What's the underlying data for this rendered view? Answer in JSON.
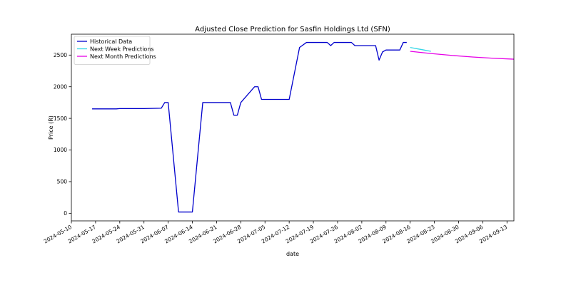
{
  "chart_data": {
    "type": "line",
    "title": "Adjusted Close Prediction for Sasfin Holdings Ltd (SFN)",
    "xlabel": "date",
    "ylabel": "Price (R)",
    "xlim": [
      "2024-05-10",
      "2024-09-15"
    ],
    "ylim": [
      -120,
      2830
    ],
    "x_ticks": [
      "2024-05-10",
      "2024-05-17",
      "2024-05-24",
      "2024-05-31",
      "2024-06-07",
      "2024-06-14",
      "2024-06-21",
      "2024-06-28",
      "2024-07-05",
      "2024-07-12",
      "2024-07-19",
      "2024-07-26",
      "2024-08-02",
      "2024-08-09",
      "2024-08-16",
      "2024-08-23",
      "2024-08-30",
      "2024-09-06",
      "2024-09-13"
    ],
    "y_ticks": [
      0,
      500,
      1000,
      1500,
      2000,
      2500
    ],
    "legend_position": "top-left",
    "grid": false,
    "series": [
      {
        "name": "Historical Data",
        "color": "#0000cc",
        "x": [
          "2024-05-16",
          "2024-05-23",
          "2024-05-24",
          "2024-05-31",
          "2024-06-05",
          "2024-06-06",
          "2024-06-07",
          "2024-06-10",
          "2024-06-13",
          "2024-06-14",
          "2024-06-17",
          "2024-06-25",
          "2024-06-26",
          "2024-06-27",
          "2024-06-28",
          "2024-07-02",
          "2024-07-03",
          "2024-07-04",
          "2024-07-10",
          "2024-07-12",
          "2024-07-15",
          "2024-07-17",
          "2024-07-23",
          "2024-07-24",
          "2024-07-25",
          "2024-07-30",
          "2024-07-31",
          "2024-08-06",
          "2024-08-07",
          "2024-08-08",
          "2024-08-09",
          "2024-08-13",
          "2024-08-14",
          "2024-08-15"
        ],
        "values": [
          1650,
          1650,
          1655,
          1655,
          1660,
          1750,
          1750,
          20,
          20,
          20,
          1750,
          1750,
          1550,
          1550,
          1750,
          2000,
          2000,
          1800,
          1800,
          1800,
          2620,
          2700,
          2700,
          2650,
          2700,
          2700,
          2650,
          2650,
          2420,
          2550,
          2580,
          2580,
          2700,
          2700
        ]
      },
      {
        "name": "Next Week Predictions",
        "color": "#33d6e6",
        "x": [
          "2024-08-16",
          "2024-08-17",
          "2024-08-18",
          "2024-08-19",
          "2024-08-20",
          "2024-08-21",
          "2024-08-22"
        ],
        "values": [
          2620,
          2610,
          2600,
          2590,
          2580,
          2570,
          2560
        ]
      },
      {
        "name": "Next Month Predictions",
        "color": "#e600e6",
        "x": [
          "2024-08-16",
          "2024-08-22",
          "2024-08-28",
          "2024-09-03",
          "2024-09-09",
          "2024-09-15"
        ],
        "values": [
          2560,
          2525,
          2495,
          2470,
          2450,
          2435
        ]
      }
    ]
  }
}
